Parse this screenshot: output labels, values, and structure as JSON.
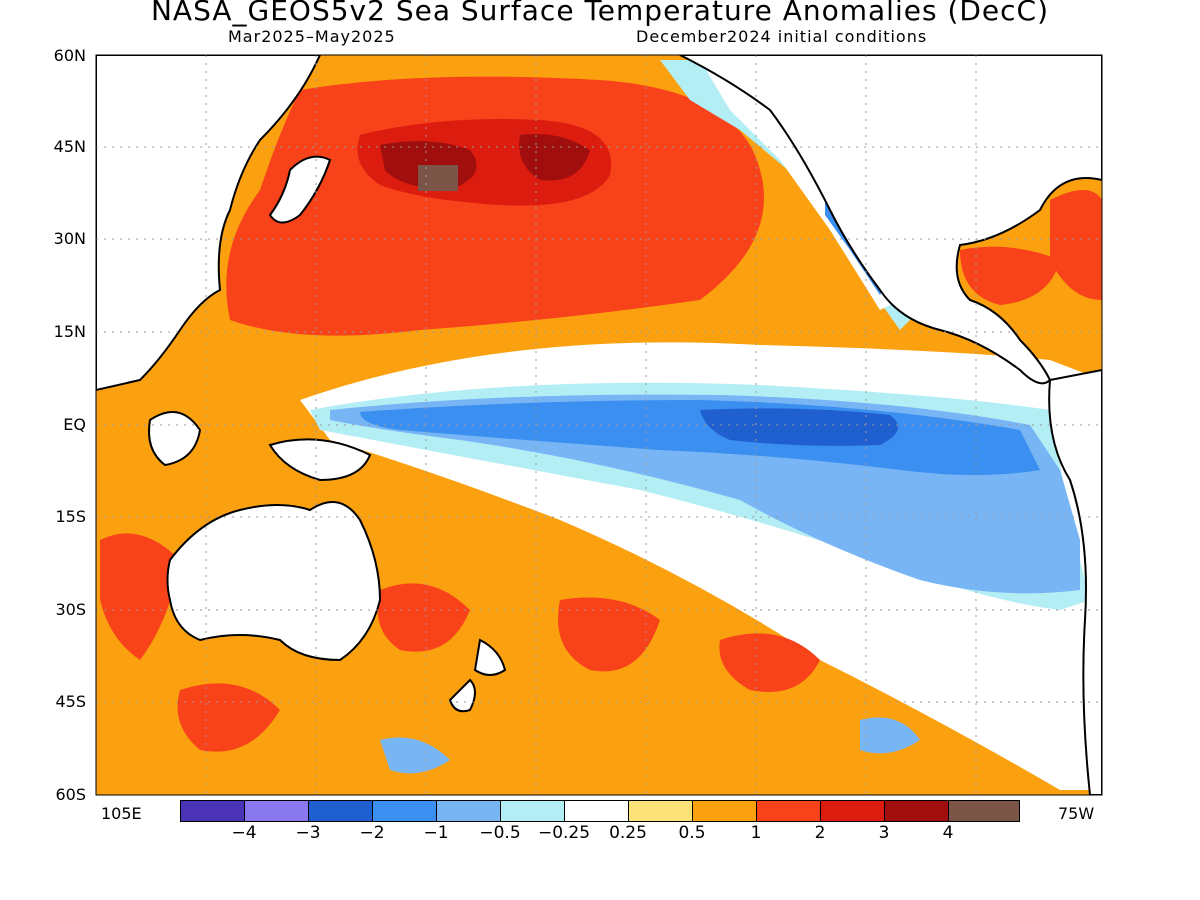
{
  "title": "NASA_GEOS5v2 Sea Surface Temperature Anomalies (DecC)",
  "subtitle_left": "Mar2025–May2025",
  "subtitle_right": "December2024 initial conditions",
  "lat_labels": [
    "60N",
    "45N",
    "30N",
    "15N",
    "EQ",
    "15S",
    "30S",
    "45S",
    "60S"
  ],
  "lon_labels": {
    "left": "105E",
    "right": "75W"
  },
  "colorbar": {
    "colors": [
      "#4a33b5",
      "#8a78ef",
      "#1f5fd0",
      "#3b8ff0",
      "#78b5f5",
      "#b4eef5",
      "#ffffff",
      "#fbe37a",
      "#fba10f",
      "#f8431a",
      "#dd1c10",
      "#a10e0e",
      "#7b5548"
    ],
    "labels": [
      "-4",
      "-3",
      "-2",
      "-1",
      "-0.5",
      "-0.25",
      "0.25",
      "0.5",
      "1",
      "2",
      "3",
      "4"
    ]
  },
  "anomaly_colors": {
    "cold_strong": "#1f5fd0",
    "cold": "#3b8ff0",
    "cool": "#78b5f5",
    "slight_cool": "#b4eef5",
    "neutral": "#ffffff",
    "slight_warm": "#fbe37a",
    "warm": "#fba10f",
    "warmer": "#f8431a",
    "hot": "#dd1c10",
    "very_hot": "#a10e0e",
    "extreme": "#7b5548"
  }
}
